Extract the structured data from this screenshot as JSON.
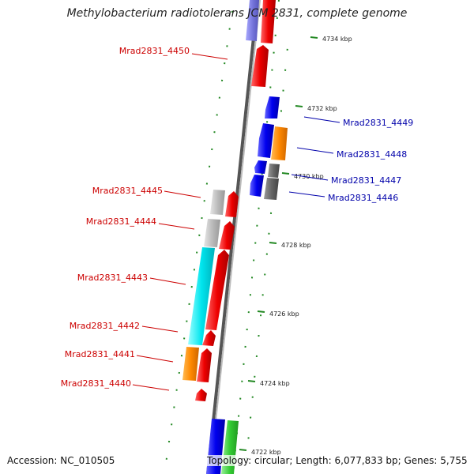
{
  "title": "Methylobacterium radiotolerans JCM 2831, complete genome",
  "accession": "Accession: NC_010505",
  "summary": "Topology: circular; Length: 6,077,833 bp; Genes: 5,755",
  "colors": {
    "forward_label": "#cc0000",
    "reverse_label": "#0000aa",
    "backbone": "#777777",
    "tick": "#228822"
  },
  "ticks": [
    {
      "label": "4734 kbp"
    },
    {
      "label": "4732 kbp"
    },
    {
      "label": "4730 kbp"
    },
    {
      "label": "4728 kbp"
    },
    {
      "label": "4726 kbp"
    },
    {
      "label": "4724 kbp"
    },
    {
      "label": "4722 kbp"
    }
  ],
  "gene_labels": [
    {
      "label": "Mrad2831_4450",
      "strand": "forward"
    },
    {
      "label": "Mrad2831_4449",
      "strand": "reverse"
    },
    {
      "label": "Mrad2831_4448",
      "strand": "reverse"
    },
    {
      "label": "Mrad2831_4447",
      "strand": "reverse"
    },
    {
      "label": "Mrad2831_4446",
      "strand": "reverse"
    },
    {
      "label": "Mrad2831_4445",
      "strand": "forward"
    },
    {
      "label": "Mrad2831_4444",
      "strand": "forward"
    },
    {
      "label": "Mrad2831_4443",
      "strand": "forward"
    },
    {
      "label": "Mrad2831_4442",
      "strand": "forward"
    },
    {
      "label": "Mrad2831_4441",
      "strand": "forward"
    },
    {
      "label": "Mrad2831_4440",
      "strand": "forward"
    }
  ]
}
